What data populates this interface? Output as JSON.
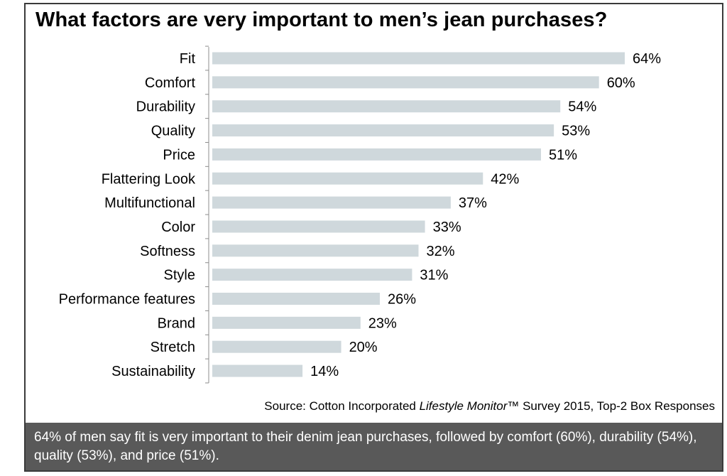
{
  "chart_data": {
    "type": "bar",
    "orientation": "horizontal",
    "title": "What factors are very important to men’s jean purchases?",
    "categories": [
      "Fit",
      "Comfort",
      "Durability",
      "Quality",
      "Price",
      "Flattering Look",
      "Multifunctional",
      "Color",
      "Softness",
      "Style",
      "Performance features",
      "Brand",
      "Stretch",
      "Sustainability"
    ],
    "values": [
      64,
      60,
      54,
      53,
      51,
      42,
      37,
      33,
      32,
      31,
      26,
      23,
      20,
      14
    ],
    "value_labels": [
      "64%",
      "60%",
      "54%",
      "53%",
      "51%",
      "42%",
      "37%",
      "33%",
      "32%",
      "31%",
      "26%",
      "23%",
      "20%",
      "14%"
    ],
    "xlim": [
      0,
      64
    ],
    "grid": false,
    "bar_color": "#cfd8dc"
  },
  "source": {
    "prefix": "Source: Cotton Incorporated ",
    "italic": "Lifestyle Monitor",
    "suffix": "™ Survey 2015, Top-2 Box Responses"
  },
  "footer_text": "64% of men say fit is very important to their denim jean purchases, followed by comfort (60%), durability (54%), quality (53%), and price (51%)."
}
